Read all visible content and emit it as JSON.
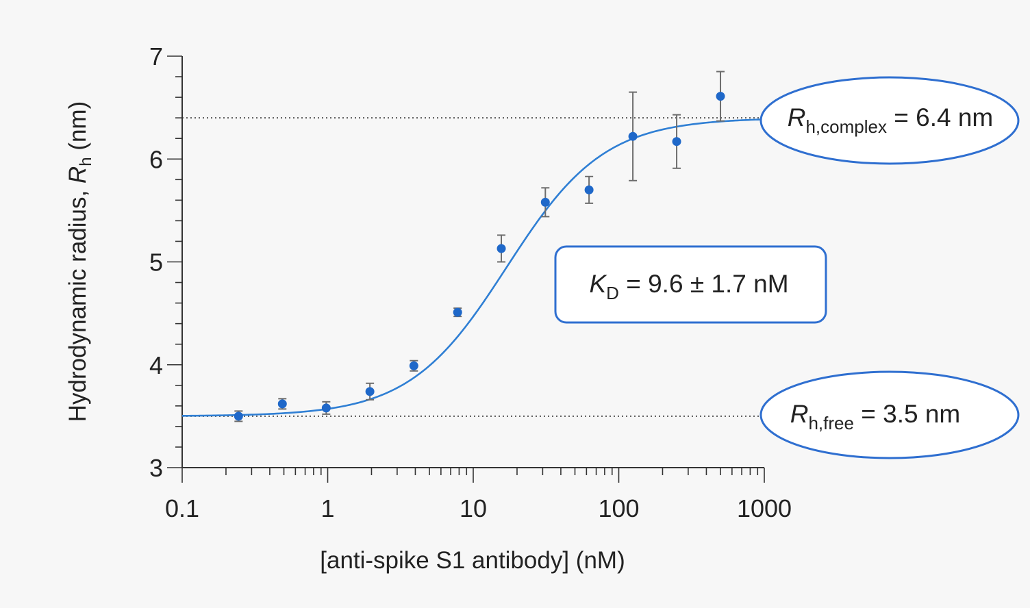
{
  "chart_data": {
    "type": "scatter",
    "xlabel": "[anti-spike S1 antibody] (nM)",
    "ylabel_prefix": "Hydrodynamic radius,",
    "ylabel_symbol": "R",
    "ylabel_symbol_sub": "h",
    "ylabel_unit": "(nm)",
    "xscale": "log",
    "xlim": [
      0.1,
      1000
    ],
    "ylim": [
      3,
      7
    ],
    "x_ticks": [
      {
        "value": 0.1,
        "label": "0.1"
      },
      {
        "value": 1,
        "label": "1"
      },
      {
        "value": 10,
        "label": "10"
      },
      {
        "value": 100,
        "label": "100"
      },
      {
        "value": 1000,
        "label": "1000"
      }
    ],
    "y_ticks": [
      {
        "value": 3,
        "label": "3"
      },
      {
        "value": 4,
        "label": "4"
      },
      {
        "value": 5,
        "label": "5"
      },
      {
        "value": 6,
        "label": "6"
      },
      {
        "value": 7,
        "label": "7"
      }
    ],
    "y_minor_step": 0.2,
    "series": [
      {
        "points": [
          {
            "x": 0.244,
            "y": 3.5,
            "err": 0.05
          },
          {
            "x": 0.488,
            "y": 3.62,
            "err": 0.05
          },
          {
            "x": 0.977,
            "y": 3.58,
            "err": 0.06
          },
          {
            "x": 1.95,
            "y": 3.74,
            "err": 0.08
          },
          {
            "x": 3.91,
            "y": 3.99,
            "err": 0.05
          },
          {
            "x": 7.81,
            "y": 4.51,
            "err": 0.04
          },
          {
            "x": 15.6,
            "y": 5.13,
            "err": 0.13
          },
          {
            "x": 31.3,
            "y": 5.58,
            "err": 0.14
          },
          {
            "x": 62.5,
            "y": 5.7,
            "err": 0.13
          },
          {
            "x": 125,
            "y": 6.22,
            "err": 0.43
          },
          {
            "x": 250,
            "y": 6.17,
            "err": 0.26
          },
          {
            "x": 500,
            "y": 6.61,
            "err": 0.24
          }
        ],
        "color": "#1f68c9",
        "errorbar_color": "#6d6d6d"
      }
    ],
    "fit": {
      "model": "sigmoid",
      "bottom": 3.5,
      "top": 6.4,
      "ec50_nM": 17,
      "hill": 1.3,
      "color": "#2f7fd4"
    },
    "reference_lines": [
      {
        "y": 6.4,
        "style": "dotted"
      },
      {
        "y": 3.5,
        "style": "dotted"
      }
    ],
    "annotations": {
      "complex": {
        "symbol": "R",
        "sub": "h,complex",
        "text": " = 6.4 nm",
        "shape": "ellipse"
      },
      "kd": {
        "symbol": "K",
        "sub": "D",
        "text": " = 9.6 ± 1.7 nM",
        "shape": "rounded-box"
      },
      "free": {
        "symbol": "R",
        "sub": "h,free",
        "text": " = 3.5 nm",
        "shape": "ellipse"
      }
    },
    "annotation_color": "#2f6fd0",
    "grid": false,
    "legend": "none"
  }
}
